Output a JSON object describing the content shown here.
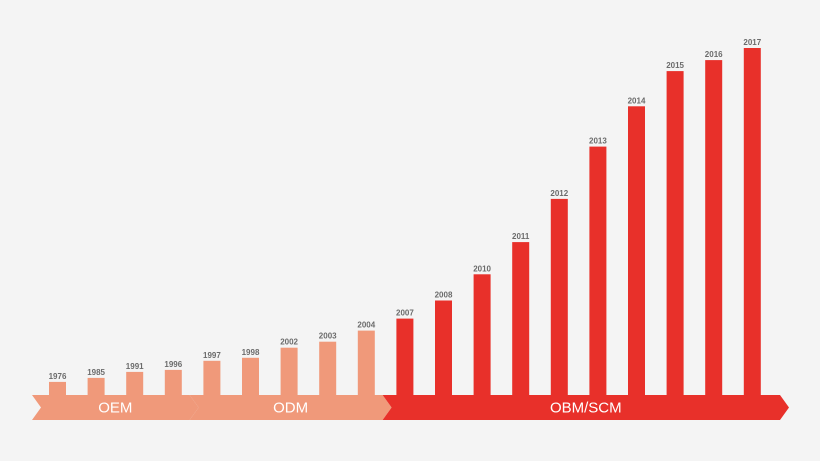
{
  "chart_data": {
    "type": "bar",
    "title": "",
    "xlabel": "",
    "ylabel": "",
    "categories": [
      "1976",
      "1985",
      "1991",
      "1996",
      "1997",
      "1998",
      "2002",
      "2003",
      "2004",
      "2007",
      "2008",
      "2010",
      "2011",
      "2012",
      "2013",
      "2014",
      "2015",
      "2016",
      "2017"
    ],
    "values": [
      13,
      17,
      23,
      25,
      34,
      37,
      47,
      53,
      64,
      76,
      94,
      120,
      152,
      195,
      247,
      287,
      322,
      333,
      345
    ],
    "ylim": [
      0,
      345
    ],
    "bar_colors": [
      "#f0997a",
      "#f0997a",
      "#f0997a",
      "#f0997a",
      "#f0997a",
      "#f0997a",
      "#f0997a",
      "#f0997a",
      "#f0997a",
      "#e8302a",
      "#e8302a",
      "#e8302a",
      "#e8302a",
      "#e8302a",
      "#e8302a",
      "#e8302a",
      "#e8302a",
      "#e8302a",
      "#e8302a"
    ],
    "phases": [
      {
        "label": "OEM",
        "first": 0,
        "last": 3,
        "color": "#f0997a"
      },
      {
        "label": "ODM",
        "first": 4,
        "last": 8,
        "color": "#f0997a"
      },
      {
        "label": "OBM/SCM",
        "first": 9,
        "last": 18,
        "color": "#e8302a"
      }
    ],
    "grid": false,
    "legend": "none"
  },
  "colors": {
    "background": "#f4f4f4",
    "early_phase": "#f0997a",
    "late_phase": "#e8302a",
    "year_text": "#6b6b6b"
  }
}
